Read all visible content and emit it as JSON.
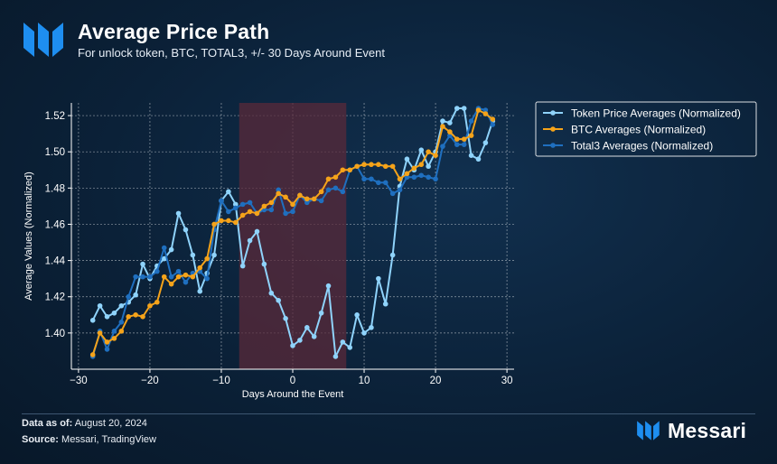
{
  "header": {
    "title": "Average Price Path",
    "subtitle": "For unlock token, BTC, TOTAL3, +/- 30 Days Around Event"
  },
  "footer": {
    "data_as_of_label": "Data as of:",
    "data_as_of_value": "August 20, 2024",
    "source_label": "Source:",
    "source_value": "Messari, TradingView",
    "brand": "Messari"
  },
  "colors": {
    "background": "#0b2138",
    "token": "#8fd3fb",
    "btc": "#f5a31a",
    "total3": "#1f6fbf",
    "event_window": "#5a2a3a",
    "grid": "#ffffff"
  },
  "chart_data": {
    "type": "line",
    "xlabel": "Days Around the Event",
    "ylabel": "Average Values (Normalized)",
    "xlim": [
      -31,
      31
    ],
    "ylim": [
      1.38,
      1.527
    ],
    "xticks": [
      -30,
      -20,
      -10,
      0,
      10,
      20,
      30
    ],
    "yticks": [
      1.4,
      1.42,
      1.44,
      1.46,
      1.48,
      1.5,
      1.52
    ],
    "grid": true,
    "legend": "top-right, outside plot",
    "highlight_window": [
      -7.5,
      7.5
    ],
    "x": [
      -28,
      -27,
      -26,
      -25,
      -24,
      -23,
      -22,
      -21,
      -20,
      -19,
      -18,
      -17,
      -16,
      -15,
      -14,
      -13,
      -12,
      -11,
      -10,
      -9,
      -8,
      -7,
      -6,
      -5,
      -4,
      -3,
      -2,
      -1,
      0,
      1,
      2,
      3,
      4,
      5,
      6,
      7,
      8,
      9,
      10,
      11,
      12,
      13,
      14,
      15,
      16,
      17,
      18,
      19,
      20,
      21,
      22,
      23,
      24,
      25,
      26,
      27,
      28
    ],
    "series": [
      {
        "name": "Token Price Averages (Normalized)",
        "color": "#8fd3fb",
        "values": [
          1.407,
          1.415,
          1.409,
          1.411,
          1.415,
          1.417,
          1.421,
          1.438,
          1.43,
          1.437,
          1.441,
          1.446,
          1.466,
          1.457,
          1.443,
          1.423,
          1.433,
          1.443,
          1.473,
          1.478,
          1.471,
          1.437,
          1.451,
          1.456,
          1.438,
          1.422,
          1.418,
          1.408,
          1.393,
          1.396,
          1.403,
          1.398,
          1.411,
          1.426,
          1.387,
          1.395,
          1.392,
          1.41,
          1.4,
          1.403,
          1.43,
          1.416,
          1.443,
          1.481,
          1.496,
          1.49,
          1.501,
          1.492,
          1.5,
          1.517,
          1.516,
          1.524,
          1.524,
          1.498,
          1.496,
          1.505,
          1.517
        ]
      },
      {
        "name": "BTC Averages (Normalized)",
        "color": "#f5a31a",
        "values": [
          1.388,
          1.4,
          1.395,
          1.397,
          1.401,
          1.409,
          1.41,
          1.409,
          1.415,
          1.417,
          1.431,
          1.427,
          1.431,
          1.432,
          1.431,
          1.436,
          1.441,
          1.46,
          1.462,
          1.462,
          1.461,
          1.465,
          1.467,
          1.466,
          1.47,
          1.472,
          1.477,
          1.475,
          1.471,
          1.476,
          1.474,
          1.474,
          1.478,
          1.485,
          1.486,
          1.49,
          1.49,
          1.492,
          1.493,
          1.493,
          1.493,
          1.492,
          1.492,
          1.485,
          1.488,
          1.491,
          1.493,
          1.5,
          1.498,
          1.514,
          1.511,
          1.507,
          1.507,
          1.509,
          1.523,
          1.521,
          1.518
        ]
      },
      {
        "name": "Total3 Averages (Normalized)",
        "color": "#1f6fbf",
        "values": [
          1.387,
          1.401,
          1.391,
          1.401,
          1.406,
          1.42,
          1.431,
          1.431,
          1.431,
          1.434,
          1.447,
          1.431,
          1.434,
          1.428,
          1.433,
          1.434,
          1.43,
          1.457,
          1.473,
          1.467,
          1.469,
          1.471,
          1.472,
          1.466,
          1.468,
          1.468,
          1.479,
          1.466,
          1.467,
          1.476,
          1.472,
          1.474,
          1.473,
          1.479,
          1.48,
          1.478,
          1.49,
          1.492,
          1.485,
          1.485,
          1.483,
          1.483,
          1.477,
          1.479,
          1.486,
          1.486,
          1.487,
          1.486,
          1.485,
          1.503,
          1.509,
          1.504,
          1.504,
          1.517,
          1.524,
          1.523,
          1.515
        ]
      }
    ]
  }
}
